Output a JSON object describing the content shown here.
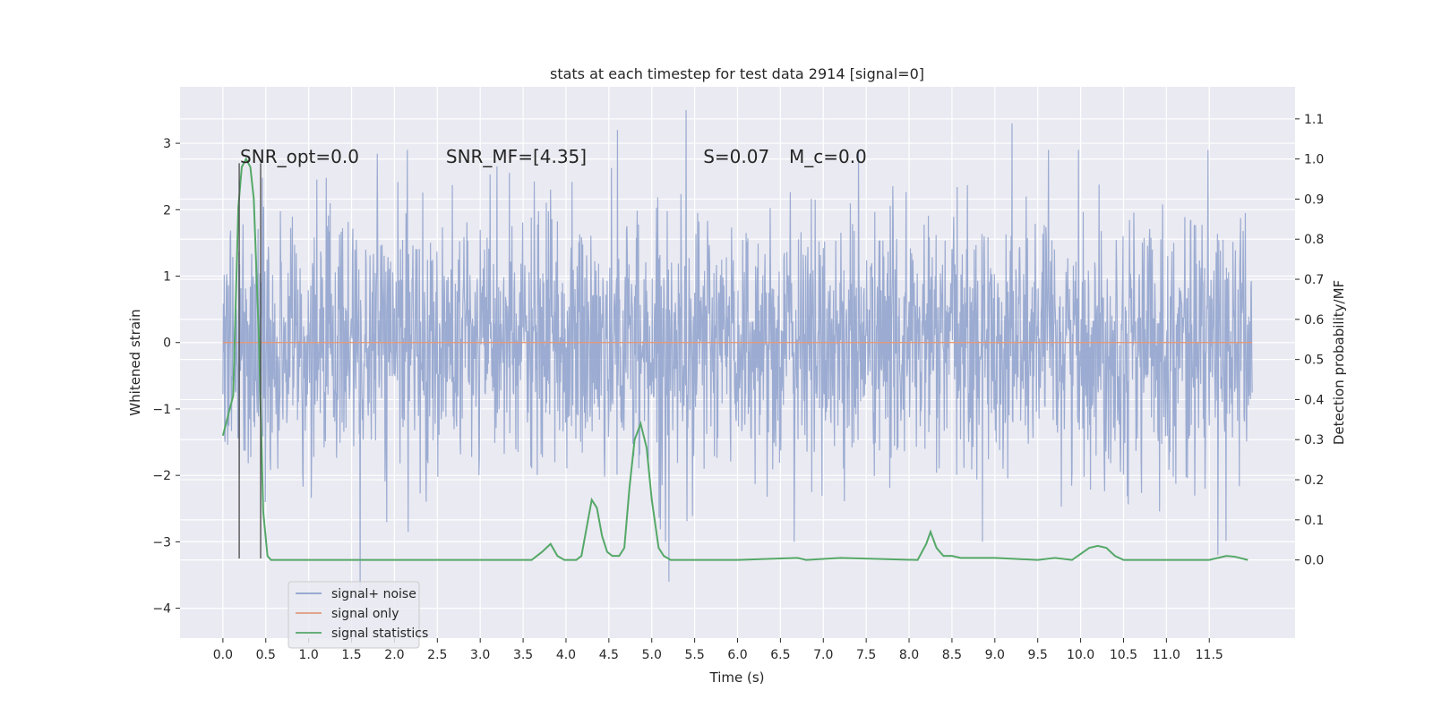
{
  "chart_data": {
    "type": "line",
    "title": "stats at each timestep for test data 2914 [signal=0]",
    "xlabel": "Time (s)",
    "ylabel": "Whitened strain",
    "y2label": "Detection probability/MF",
    "xlim": [
      -0.5,
      12.5
    ],
    "ylim": [
      -4.45,
      3.85
    ],
    "y2lim": [
      -0.195,
      1.18
    ],
    "grid": true,
    "legend_position": "lower-left",
    "x_ticks": [
      0.0,
      0.5,
      1.0,
      1.5,
      2.0,
      2.5,
      3.0,
      3.5,
      4.0,
      4.5,
      5.0,
      5.5,
      6.0,
      6.5,
      7.0,
      7.5,
      8.0,
      8.5,
      9.0,
      9.5,
      10.0,
      10.5,
      11.0,
      11.5
    ],
    "x_tick_labels": [
      "0.0",
      "0.5",
      "1.0",
      "1.5",
      "2.0",
      "2.5",
      "3.0",
      "3.5",
      "4.0",
      "4.5",
      "5.0",
      "5.5",
      "6.0",
      "6.5",
      "7.0",
      "7.5",
      "8.0",
      "8.5",
      "9.0",
      "9.5",
      "10.0",
      "10.5",
      "11.0",
      "11.5"
    ],
    "y_ticks": [
      3,
      2,
      1,
      0,
      -1,
      -2,
      -3,
      -4
    ],
    "y_tick_labels": [
      "3",
      "2",
      "1",
      "0",
      "−1",
      "−2",
      "−3",
      "−4"
    ],
    "y2_ticks": [
      1.1,
      1.0,
      0.9,
      0.8,
      0.7,
      0.6,
      0.5,
      0.4,
      0.3,
      0.2,
      0.1,
      0.0
    ],
    "y2_tick_labels": [
      "1.1",
      "1.0",
      "0.9",
      "0.8",
      "0.7",
      "0.6",
      "0.5",
      "0.4",
      "0.3",
      "0.2",
      "0.1",
      "0.0"
    ],
    "annotations": [
      {
        "text": "SNR_opt=0.0",
        "x": 0.2,
        "y": 2.8
      },
      {
        "text": "SNR_MF=[4.35]",
        "x": 2.6,
        "y": 2.8
      },
      {
        "text": "S=0.07",
        "x": 5.6,
        "y": 2.8
      },
      {
        "text": "M_c=0.0",
        "x": 6.6,
        "y": 2.8
      }
    ],
    "vertical_lines": [
      0.19,
      0.44
    ],
    "vertical_line_range": [
      -3.25,
      2.7
    ],
    "series": [
      {
        "name": "signal+ noise",
        "axis": "left",
        "color": "#8da0cb",
        "kind": "noise_band",
        "x_range": [
          0.0,
          12.0
        ],
        "typical_range": [
          -1.5,
          1.5
        ],
        "extremes": [
          {
            "x": 1.6,
            "y": -3.7
          },
          {
            "x": 5.2,
            "y": -3.6
          },
          {
            "x": 5.4,
            "y": 3.5
          },
          {
            "x": 4.6,
            "y": 3.2
          },
          {
            "x": 9.2,
            "y": 3.3
          },
          {
            "x": 11.6,
            "y": -3.2
          }
        ]
      },
      {
        "name": "signal only",
        "axis": "left",
        "color": "#e29a7c",
        "x": [
          0.0,
          12.0
        ],
        "y": [
          0.0,
          0.0
        ]
      },
      {
        "name": "signal statistics",
        "axis": "right",
        "color": "#55a868",
        "x": [
          0.0,
          0.12,
          0.18,
          0.22,
          0.27,
          0.32,
          0.36,
          0.42,
          0.47,
          0.52,
          0.56,
          0.6,
          0.65,
          1.0,
          2.0,
          3.0,
          3.6,
          3.72,
          3.82,
          3.9,
          3.98,
          4.05,
          4.12,
          4.18,
          4.24,
          4.3,
          4.36,
          4.42,
          4.48,
          4.54,
          4.62,
          4.68,
          4.74,
          4.8,
          4.87,
          4.94,
          5.0,
          5.08,
          5.14,
          5.22,
          5.3,
          6.0,
          6.7,
          6.8,
          7.2,
          8.1,
          8.2,
          8.25,
          8.32,
          8.4,
          8.5,
          8.6,
          9.0,
          9.5,
          9.7,
          9.9,
          10.0,
          10.1,
          10.2,
          10.3,
          10.4,
          10.5,
          10.6,
          11.0,
          11.5,
          11.7,
          11.8,
          11.95
        ],
        "y": [
          0.31,
          0.41,
          0.88,
          0.98,
          1.0,
          0.98,
          0.9,
          0.55,
          0.12,
          0.01,
          0.0,
          0.0,
          0.0,
          0.0,
          0.0,
          0.0,
          0.0,
          0.02,
          0.04,
          0.01,
          0.0,
          0.0,
          0.0,
          0.01,
          0.08,
          0.15,
          0.13,
          0.06,
          0.02,
          0.01,
          0.01,
          0.03,
          0.18,
          0.3,
          0.34,
          0.28,
          0.15,
          0.03,
          0.01,
          0.0,
          0.0,
          0.0,
          0.005,
          0.0,
          0.005,
          0.0,
          0.04,
          0.07,
          0.03,
          0.01,
          0.01,
          0.005,
          0.005,
          0.0,
          0.005,
          0.0,
          0.015,
          0.03,
          0.035,
          0.03,
          0.01,
          0.0,
          0.0,
          0.0,
          0.0,
          0.01,
          0.008,
          0.0
        ]
      }
    ]
  }
}
